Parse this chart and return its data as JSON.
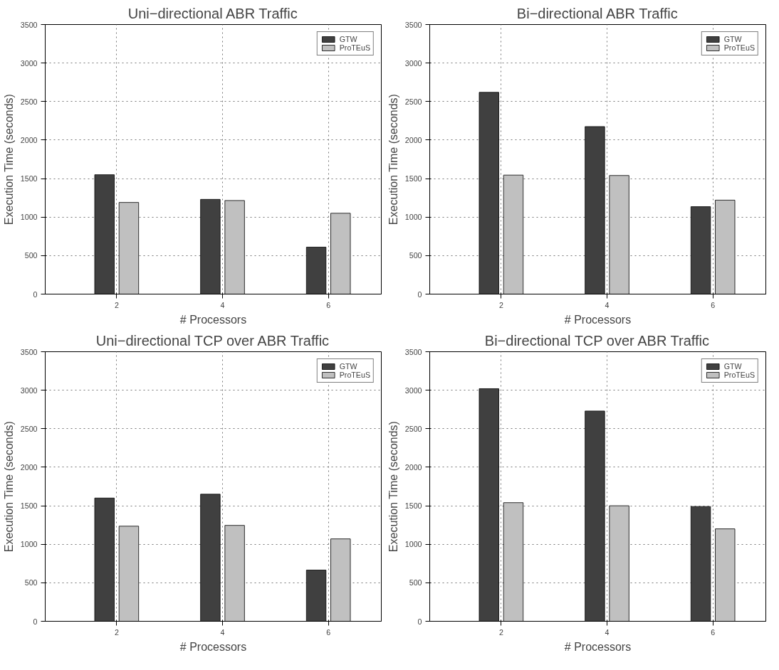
{
  "chart_data": [
    {
      "type": "bar",
      "title": "Uni−directional ABR Traffic",
      "xlabel": "# Processors",
      "ylabel": "Execution Time (seconds)",
      "x": [
        2,
        4,
        6
      ],
      "xlim": [
        0.65,
        7
      ],
      "xticks": [
        2,
        4,
        6
      ],
      "ylim": [
        0,
        3500
      ],
      "yticks": [
        0,
        500,
        1000,
        1500,
        2000,
        2500,
        3000,
        3500
      ],
      "grid": true,
      "legend": "top right",
      "series": [
        {
          "name": "GTW",
          "color": "#404040",
          "values": [
            1550,
            1230,
            610
          ]
        },
        {
          "name": "ProTEuS",
          "color": "#c0c0c0",
          "values": [
            1190,
            1215,
            1050
          ]
        }
      ]
    },
    {
      "type": "bar",
      "title": "Bi−directional ABR Traffic",
      "xlabel": "# Processors",
      "ylabel": "Execution Time (seconds)",
      "x": [
        2,
        4,
        6
      ],
      "xlim": [
        0.65,
        7
      ],
      "xticks": [
        2,
        4,
        6
      ],
      "ylim": [
        0,
        3500
      ],
      "yticks": [
        0,
        500,
        1000,
        1500,
        2000,
        2500,
        3000,
        3500
      ],
      "grid": true,
      "legend": "top right",
      "series": [
        {
          "name": "GTW",
          "color": "#404040",
          "values": [
            2620,
            2175,
            1135
          ]
        },
        {
          "name": "ProTEuS",
          "color": "#c0c0c0",
          "values": [
            1545,
            1540,
            1220
          ]
        }
      ]
    },
    {
      "type": "bar",
      "title": "Uni−directional TCP over ABR Traffic",
      "xlabel": "# Processors",
      "ylabel": "Execution Time (seconds)",
      "x": [
        2,
        4,
        6
      ],
      "xlim": [
        0.65,
        7
      ],
      "xticks": [
        2,
        4,
        6
      ],
      "ylim": [
        0,
        3500
      ],
      "yticks": [
        0,
        500,
        1000,
        1500,
        2000,
        2500,
        3000,
        3500
      ],
      "grid": true,
      "legend": "top right",
      "series": [
        {
          "name": "GTW",
          "color": "#404040",
          "values": [
            1600,
            1650,
            665
          ]
        },
        {
          "name": "ProTEuS",
          "color": "#c0c0c0",
          "values": [
            1235,
            1245,
            1070
          ]
        }
      ]
    },
    {
      "type": "bar",
      "title": "Bi−directional TCP over ABR Traffic",
      "xlabel": "# Processors",
      "ylabel": "Execution Time (seconds)",
      "x": [
        2,
        4,
        6
      ],
      "xlim": [
        0.65,
        7
      ],
      "xticks": [
        2,
        4,
        6
      ],
      "ylim": [
        0,
        3500
      ],
      "yticks": [
        0,
        500,
        1000,
        1500,
        2000,
        2500,
        3000,
        3500
      ],
      "grid": true,
      "legend": "top right",
      "series": [
        {
          "name": "GTW",
          "color": "#404040",
          "values": [
            3020,
            2730,
            1490
          ]
        },
        {
          "name": "ProTEuS",
          "color": "#c0c0c0",
          "values": [
            1540,
            1500,
            1200
          ]
        }
      ]
    }
  ]
}
